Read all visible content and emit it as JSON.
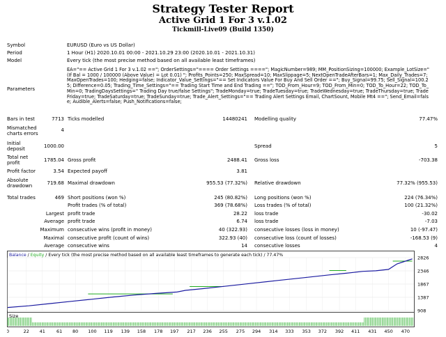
{
  "report": {
    "title": "Strategy Tester Report",
    "subtitle": "Active Grid 1 For 3 v.1.02",
    "server": "Tickmill-Live09 (Build 1350)"
  },
  "info": {
    "symbol_label": "Symbol",
    "symbol_value": "EURUSD (Euro vs US Dollar)",
    "period_label": "Period",
    "period_value": "1 Hour (H1) 2020.10.01 00:00 - 2021.10.29 23:00 (2020.10.01 - 2021.10.31)",
    "model_label": "Model",
    "model_value": "Every tick (the most precise method based on all available least timeframes)",
    "parameters_label": "Parameters",
    "parameters_value": "EA=\"== Active Grid 1 For 3 v.1.02 ==\"; OrderSettings=\"==== Order Settings ====\"; MagicNumber=989; MM_PositionSizing=100000; Example_LotSize=\" (If Bal = 1000 / 100000 (Above Value) = Lot 0.01) \"; Profits_Points=250; MaxSpread=10; MaxSlippage=5; NextOpenTradeAfterBars=1; Max_Daily_Trades=7; MaxOpenTrades=100; Hedging=false; Indicator_Value_Settings=\"== Set Indicators Value For Buy And Sell Order ==\"; Buy_Signal=99.75; Sell_Signal=100.25; Difference=0.05; Trading_Time_Settings=\"== Trading Start Time and End Trading ==\"; TOD_From_Hour=9; TOD_From_Min=0; TOD_To_Hour=22; TOD_To_Min=0; TradingDaysSettings=\" Trading Day true/false Settings\"; TradeMonday=true; TradeTuesday=true; TradeWednesday=true; TradeThursday=true; TradeFriday=true; TradeSaturday=true; TradeSunday=true; Trade_Alert_Settings=\"== Trading Alert Settings Email, ChartSount, Mobile Mt4 ==\"; Send_Email=false; Audible_Alerts=false; Push_Notifications=false;"
  },
  "stats": {
    "bars_label": "Bars in test",
    "bars_value": "7713",
    "ticks_label": "Ticks modelled",
    "ticks_value": "14480241",
    "quality_label": "Modelling quality",
    "quality_value": "77.47%",
    "mismatch_label": "Mismatched charts errors",
    "mismatch_value": "4",
    "deposit_label": "Initial deposit",
    "deposit_value": "1000.00",
    "spread_label": "Spread",
    "spread_value": "5",
    "netprofit_label": "Total net profit",
    "netprofit_value": "1785.04",
    "grossprofit_label": "Gross profit",
    "grossprofit_value": "2488.41",
    "grossloss_label": "Gross loss",
    "grossloss_value": "-703.38",
    "pf_label": "Profit factor",
    "pf_value": "3.54",
    "payoff_label": "Expected payoff",
    "payoff_value": "3.81",
    "absdd_label": "Absolute drawdown",
    "absdd_value": "719.68",
    "maxdd_label": "Maximal drawdown",
    "maxdd_value": "955.53 (77.32%)",
    "reldd_label": "Relative drawdown",
    "reldd_value": "77.32% (955.53)",
    "trades_label": "Total trades",
    "trades_value": "469",
    "short_label": "Short positions (won %)",
    "short_value": "245 (80.82%)",
    "long_label": "Long positions (won %)",
    "long_value": "224 (76.34%)",
    "proftrades_label": "Profit trades (% of total)",
    "proftrades_value": "369 (78.68%)",
    "losstrades_label": "Loss trades (% of total)",
    "losstrades_value": "100 (21.32%)",
    "largest_label": "Largest",
    "largest_p_label": "profit trade",
    "largest_p_value": "28.22",
    "largest_l_label": "loss trade",
    "largest_l_value": "-30.02",
    "average_label": "Average",
    "average_p_label": "profit trade",
    "average_p_value": "6.74",
    "average_l_label": "loss trade",
    "average_l_value": "-7.03",
    "maximum_label": "Maximum",
    "maximum_w_label": "consecutive wins (profit in money)",
    "maximum_w_value": "40 (322.93)",
    "maximum_l_label": "consecutive losses (loss in money)",
    "maximum_l_value": "10 (-97.47)",
    "maximal_label": "Maximal",
    "maximal_w_label": "consecutive profit (count of wins)",
    "maximal_w_value": "322.93 (40)",
    "maximal_l_label": "consecutive loss (count of losses)",
    "maximal_l_value": "-168.53 (9)",
    "avg2_label": "Average",
    "avg2_w_label": "consecutive wins",
    "avg2_w_value": "14",
    "avg2_l_label": "consecutive losses",
    "avg2_l_value": "4"
  },
  "chart_data": {
    "type": "line",
    "legend_balance": "Balance",
    "legend_sep1": " / ",
    "legend_equity": "Equity",
    "legend_rest": " / Every tick (the most precise method based on all available least timeframes to generate each tick) / 77.47%",
    "size_label": "Size",
    "balance_color": "#1a1aa0",
    "equity_color": "#1faa1f",
    "ylim": [
      908,
      2826
    ],
    "y_ticks": [
      "2826",
      "2346",
      "1867",
      "1387",
      "908"
    ],
    "x_ticks": [
      "0",
      "22",
      "41",
      "61",
      "80",
      "100",
      "119",
      "139",
      "158",
      "178",
      "197",
      "217",
      "236",
      "255",
      "275",
      "294",
      "314",
      "333",
      "353",
      "372",
      "392",
      "411",
      "431",
      "450",
      "470"
    ],
    "xlim": [
      0,
      480
    ],
    "balance": {
      "x": [
        0,
        25,
        50,
        75,
        100,
        125,
        150,
        175,
        200,
        210,
        230,
        260,
        290,
        320,
        350,
        380,
        400,
        420,
        435,
        450,
        460,
        470,
        478
      ],
      "y": [
        1020,
        1080,
        1160,
        1240,
        1320,
        1400,
        1470,
        1530,
        1580,
        1640,
        1700,
        1800,
        1900,
        2000,
        2100,
        2200,
        2260,
        2330,
        2350,
        2400,
        2600,
        2700,
        2780
      ]
    },
    "equity_flat": [
      {
        "x": [
          95,
          195
        ],
        "y": 1510
      },
      {
        "x": [
          215,
          255
        ],
        "y": 1780
      },
      {
        "x": [
          380,
          400
        ],
        "y": 2360
      },
      {
        "x": [
          455,
          478
        ],
        "y": 2700
      }
    ]
  }
}
